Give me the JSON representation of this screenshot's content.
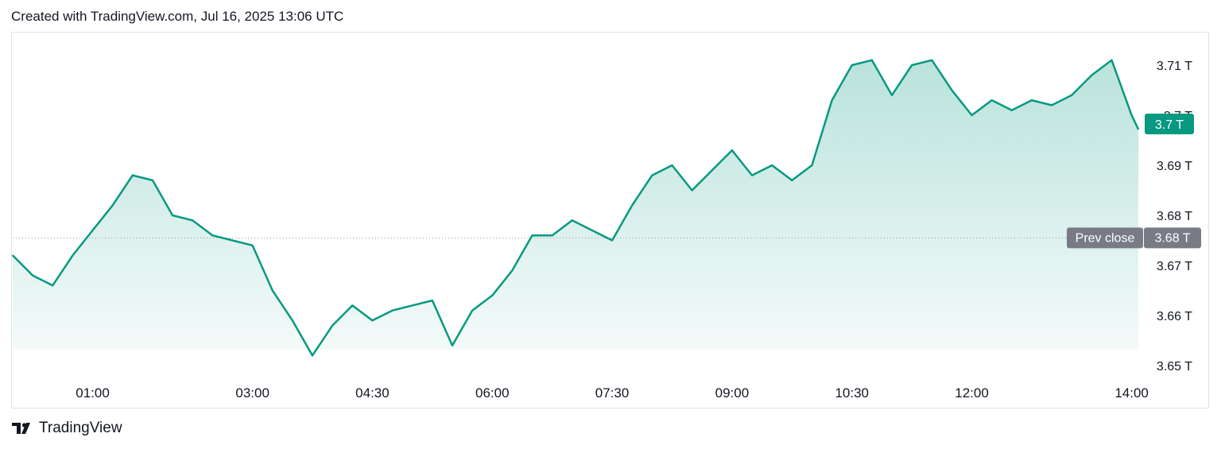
{
  "header": {
    "caption": "Created with TradingView.com, Jul 16, 2025 13:06 UTC"
  },
  "footer": {
    "brand": "TradingView",
    "logo_icon": "tradingview-logo-icon"
  },
  "colors": {
    "line": "#089981",
    "fill_top": "#089981",
    "prev_close_badge": "#787b86",
    "last_badge": "#089981"
  },
  "chart_data": {
    "type": "area",
    "unit": "T",
    "x_tick_labels": [
      "01:00",
      "03:00",
      "04:30",
      "06:00",
      "07:30",
      "09:00",
      "10:30",
      "12:00",
      "14:00"
    ],
    "y_tick_labels": [
      "3.71 T",
      "3.7 T",
      "3.69 T",
      "3.68 T",
      "3.67 T",
      "3.66 T",
      "3.65 T"
    ],
    "ylim": [
      3.65,
      3.715
    ],
    "prev_close": {
      "label": "Prev close",
      "value": 3.6755,
      "value_label": "3.68 T"
    },
    "last_value": {
      "value": 3.6972,
      "value_label": "3.7 T"
    },
    "series": [
      {
        "x": [
          "00:00",
          "00:15",
          "00:30",
          "00:45",
          "01:00",
          "01:15",
          "01:30",
          "01:45",
          "02:00",
          "02:15",
          "02:30",
          "02:45",
          "03:00",
          "03:15",
          "03:30",
          "03:45",
          "04:00",
          "04:15",
          "04:30",
          "04:45",
          "05:00",
          "05:15",
          "05:30",
          "05:45",
          "06:00",
          "06:15",
          "06:30",
          "06:45",
          "07:00",
          "07:15",
          "07:30",
          "07:45",
          "08:00",
          "08:15",
          "08:30",
          "08:45",
          "09:00",
          "09:15",
          "09:30",
          "09:45",
          "10:00",
          "10:15",
          "10:30",
          "10:45",
          "11:00",
          "11:15",
          "11:30",
          "11:45",
          "12:00",
          "12:15",
          "12:30",
          "12:45",
          "13:00",
          "13:15",
          "13:30",
          "13:45",
          "14:00",
          "14:05"
        ],
        "values": [
          3.672,
          3.668,
          3.666,
          3.672,
          3.677,
          3.682,
          3.688,
          3.687,
          3.68,
          3.679,
          3.676,
          3.675,
          3.674,
          3.665,
          3.659,
          3.652,
          3.658,
          3.662,
          3.659,
          3.661,
          3.662,
          3.663,
          3.654,
          3.661,
          3.664,
          3.669,
          3.676,
          3.676,
          3.679,
          3.677,
          3.675,
          3.682,
          3.688,
          3.69,
          3.685,
          3.689,
          3.693,
          3.688,
          3.69,
          3.687,
          3.69,
          3.703,
          3.71,
          3.711,
          3.704,
          3.71,
          3.711,
          3.705,
          3.7,
          3.703,
          3.701,
          3.703,
          3.702,
          3.704,
          3.708,
          3.711,
          3.7,
          3.6972
        ]
      }
    ]
  }
}
